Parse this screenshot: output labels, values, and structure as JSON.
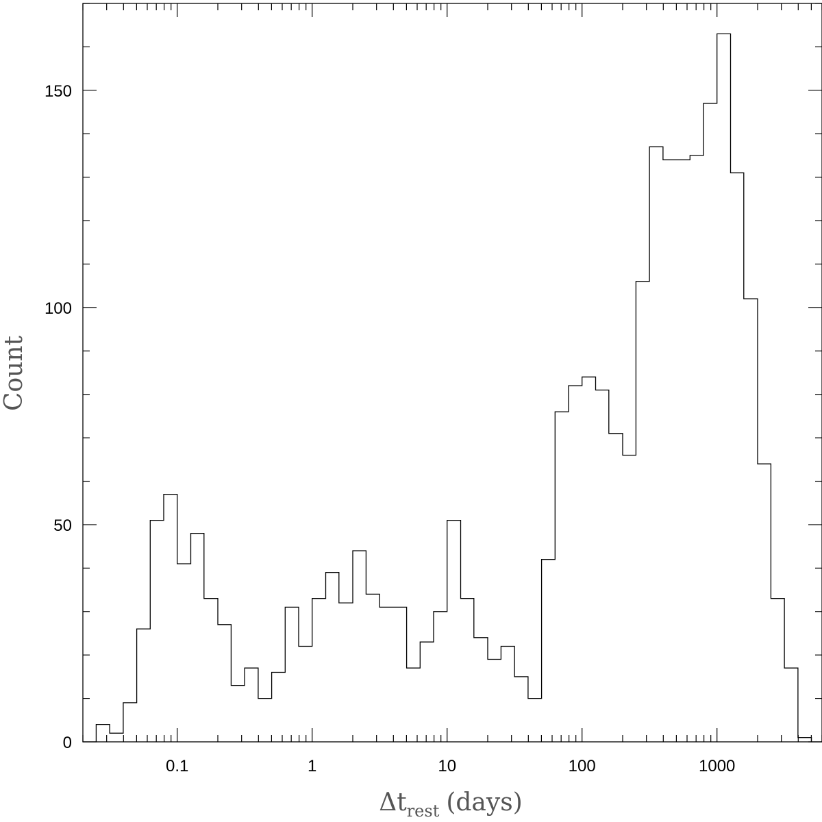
{
  "chart_data": {
    "type": "bar",
    "histogram_style": "step",
    "xscale": "log",
    "xlabel_main": "Δt",
    "xlabel_sub": "rest",
    "xlabel_tail": "(days)",
    "ylabel": "Count",
    "xlim": [
      0.02,
      6000
    ],
    "ylim": [
      0,
      170
    ],
    "x_ticks": [
      {
        "value": 0.1,
        "label": "0.1"
      },
      {
        "value": 1,
        "label": "1"
      },
      {
        "value": 10,
        "label": "10"
      },
      {
        "value": 100,
        "label": "100"
      },
      {
        "value": 1000,
        "label": "1000"
      }
    ],
    "y_ticks": [
      {
        "value": 0,
        "label": "0"
      },
      {
        "value": 50,
        "label": "50"
      },
      {
        "value": 100,
        "label": "100"
      },
      {
        "value": 150,
        "label": "150"
      }
    ],
    "y_minor_step": 10,
    "grid": false,
    "bin_edges": [
      0.0251,
      0.0316,
      0.0398,
      0.0501,
      0.0631,
      0.0794,
      0.1,
      0.126,
      0.158,
      0.2,
      0.251,
      0.316,
      0.398,
      0.501,
      0.631,
      0.794,
      1,
      1.26,
      1.58,
      2,
      2.51,
      3.16,
      3.98,
      5.01,
      6.31,
      7.94,
      10,
      12.6,
      15.8,
      20,
      25.1,
      31.6,
      39.8,
      50.1,
      63.1,
      79.4,
      100,
      126,
      158,
      200,
      251,
      316,
      398,
      501,
      631,
      794,
      1000,
      1260,
      1580,
      2000,
      2510,
      3160,
      3980
    ],
    "counts": [
      4,
      2,
      9,
      26,
      51,
      57,
      41,
      48,
      33,
      27,
      13,
      17,
      10,
      16,
      31,
      22,
      33,
      39,
      32,
      44,
      34,
      31,
      31,
      17,
      23,
      30,
      51,
      33,
      24,
      19,
      22,
      15,
      10,
      42,
      76,
      82,
      84,
      81,
      71,
      66,
      106,
      137,
      134,
      134,
      135,
      147,
      163,
      131,
      102,
      64,
      33,
      17
    ],
    "tail_count": 1
  }
}
